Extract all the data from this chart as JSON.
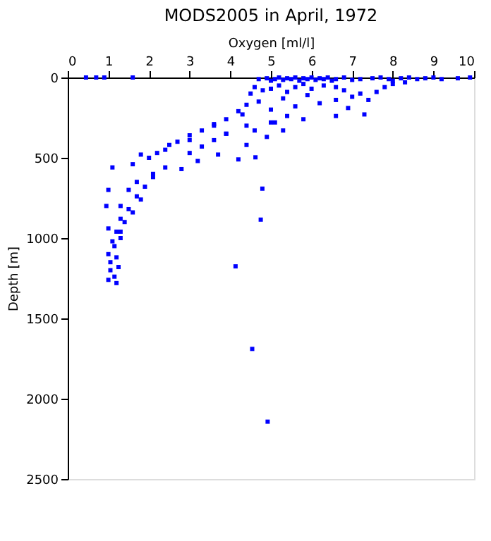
{
  "chart_data": {
    "type": "scatter",
    "title": "MODS2005 in April, 1972",
    "xlabel": "Oxygen [ml/l]",
    "ylabel": "Depth [m]",
    "xlim": [
      0,
      10
    ],
    "xticks": [
      0,
      1,
      2,
      3,
      4,
      5,
      6,
      7,
      8,
      9,
      10
    ],
    "ylim": [
      2500,
      0
    ],
    "yticks": [
      0,
      500,
      1000,
      1500,
      2000,
      2500
    ],
    "marker": "square",
    "grid": false,
    "series": [
      {
        "color": "#0000ff",
        "x": [
          0.45,
          0.7,
          0.9,
          1.6,
          4.7,
          4.9,
          5.0,
          5.1,
          5.2,
          5.3,
          5.4,
          5.5,
          5.6,
          5.7,
          5.8,
          5.9,
          6.0,
          6.1,
          6.2,
          6.3,
          6.4,
          6.5,
          6.6,
          6.8,
          7.0,
          7.2,
          7.5,
          7.7,
          7.9,
          8.0,
          8.2,
          8.4,
          8.6,
          8.8,
          9.0,
          9.2,
          9.6,
          9.9,
          4.5,
          4.6,
          4.8,
          5.0,
          5.2,
          5.4,
          5.6,
          5.8,
          6.0,
          6.3,
          6.6,
          6.8,
          7.0,
          7.2,
          7.4,
          7.6,
          7.8,
          8.0,
          8.3,
          4.3,
          4.4,
          4.7,
          5.0,
          5.3,
          5.6,
          5.9,
          6.2,
          6.6,
          6.9,
          7.3,
          3.6,
          3.9,
          4.2,
          4.6,
          5.0,
          5.4,
          5.8,
          6.6,
          3.0,
          3.3,
          3.6,
          3.9,
          4.4,
          4.9,
          5.3,
          2.4,
          2.7,
          3.0,
          3.3,
          3.6,
          3.9,
          4.4,
          5.1,
          2.0,
          2.2,
          2.5,
          2.8,
          3.2,
          3.7,
          4.2,
          1.6,
          1.8,
          1.7,
          2.1,
          2.4,
          3.0,
          4.62,
          1.0,
          1.3,
          1.5,
          1.7,
          1.9,
          2.1,
          1.1,
          1.3,
          1.5,
          1.8,
          1.0,
          1.2,
          1.4,
          1.6,
          0.95,
          1.1,
          1.3,
          1.0,
          1.15,
          1.3,
          1.05,
          1.2,
          1.05,
          1.25,
          1.0,
          1.15,
          1.2,
          4.79,
          4.75,
          4.13,
          4.54,
          4.92
        ],
        "values": [
          0,
          0,
          0,
          0,
          10,
          5,
          20,
          10,
          0,
          15,
          5,
          10,
          0,
          20,
          5,
          10,
          0,
          15,
          5,
          10,
          0,
          20,
          10,
          0,
          15,
          10,
          5,
          0,
          10,
          20,
          5,
          0,
          10,
          5,
          0,
          10,
          5,
          0,
          100,
          60,
          80,
          70,
          50,
          90,
          60,
          40,
          70,
          50,
          60,
          80,
          120,
          100,
          140,
          90,
          60,
          40,
          30,
          230,
          170,
          150,
          200,
          130,
          180,
          110,
          160,
          140,
          190,
          230,
          290,
          260,
          210,
          330,
          280,
          240,
          260,
          240,
          390,
          330,
          300,
          350,
          420,
          370,
          330,
          450,
          400,
          360,
          430,
          390,
          350,
          300,
          280,
          500,
          470,
          420,
          570,
          520,
          480,
          510,
          540,
          480,
          650,
          600,
          560,
          470,
          497,
          940,
          800,
          700,
          740,
          680,
          620,
          560,
          880,
          820,
          760,
          700,
          960,
          900,
          840,
          800,
          1020,
          960,
          1100,
          1050,
          1000,
          1150,
          1120,
          1200,
          1180,
          1260,
          1240,
          1280,
          692,
          885,
          1176,
          1690,
          2143
        ]
      }
    ]
  }
}
